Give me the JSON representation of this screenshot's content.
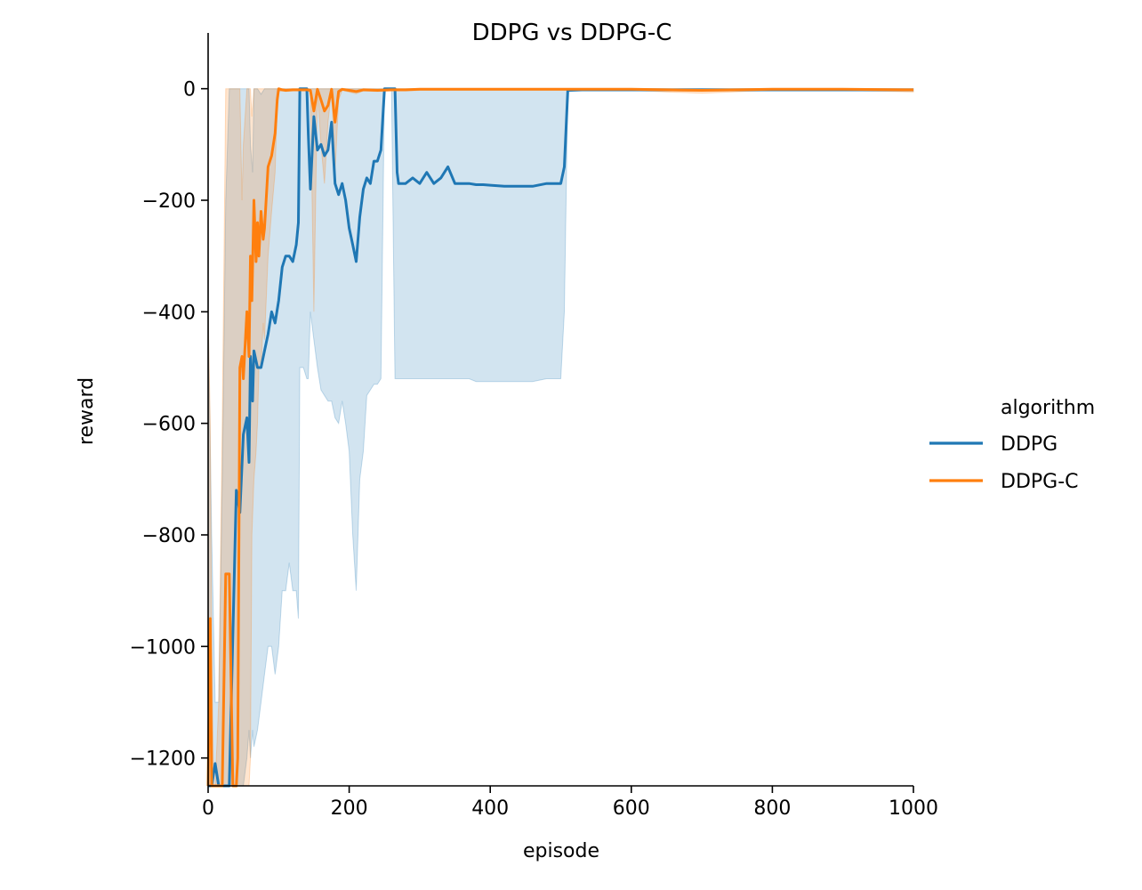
{
  "chart_data": {
    "type": "line",
    "title": "DDPG vs DDPG-C",
    "xlabel": "episode",
    "ylabel": "reward",
    "xlim": [
      0,
      1000
    ],
    "ylim": [
      -1250,
      100
    ],
    "xticks": [
      0,
      200,
      400,
      600,
      800,
      1000
    ],
    "xtick_labels": [
      "0",
      "200",
      "400",
      "600",
      "800",
      "1000"
    ],
    "yticks": [
      0,
      -200,
      -400,
      -600,
      -800,
      -1000,
      -1200
    ],
    "ytick_labels": [
      "0",
      "−200",
      "−400",
      "−600",
      "−800",
      "−1000",
      "−1200"
    ],
    "legend": {
      "title": "algorithm",
      "placement": "outside-right",
      "entries": [
        "DDPG",
        "DDPG-C"
      ]
    },
    "series": [
      {
        "name": "DDPG",
        "color": "#1f77b4",
        "x": [
          0,
          5,
          10,
          15,
          20,
          25,
          30,
          35,
          40,
          45,
          50,
          55,
          58,
          60,
          63,
          65,
          70,
          75,
          80,
          85,
          90,
          95,
          100,
          105,
          110,
          115,
          120,
          125,
          128,
          130,
          135,
          140,
          142,
          145,
          150,
          155,
          160,
          165,
          170,
          175,
          180,
          185,
          190,
          195,
          200,
          205,
          210,
          215,
          220,
          225,
          230,
          235,
          240,
          245,
          250,
          255,
          260,
          265,
          268,
          270,
          280,
          290,
          300,
          310,
          320,
          330,
          340,
          350,
          360,
          370,
          380,
          390,
          400,
          420,
          440,
          460,
          480,
          500,
          505,
          510,
          530,
          600,
          700,
          800,
          900,
          1000
        ],
        "y": [
          -1250,
          -1250,
          -1210,
          -1250,
          -1250,
          -1250,
          -1250,
          -980,
          -720,
          -760,
          -620,
          -590,
          -670,
          -480,
          -560,
          -470,
          -500,
          -500,
          -470,
          -440,
          -400,
          -420,
          -380,
          -320,
          -300,
          -300,
          -310,
          -280,
          -240,
          0,
          0,
          0,
          -80,
          -180,
          -50,
          -110,
          -100,
          -120,
          -110,
          -60,
          -170,
          -190,
          -170,
          -200,
          -250,
          -280,
          -310,
          -230,
          -180,
          -160,
          -170,
          -130,
          -130,
          -110,
          0,
          0,
          0,
          0,
          -150,
          -170,
          -170,
          -160,
          -170,
          -150,
          -170,
          -160,
          -140,
          -170,
          -170,
          -170,
          -172,
          -172,
          -173,
          -175,
          -175,
          -175,
          -170,
          -170,
          -140,
          -3,
          -2,
          -2,
          -2,
          -2,
          -2,
          -2
        ],
        "upper": [
          -400,
          -800,
          -1100,
          -1100,
          -700,
          -200,
          0,
          0,
          0,
          0,
          0,
          0,
          0,
          -100,
          -150,
          0,
          0,
          -10,
          0,
          0,
          0,
          0,
          0,
          0,
          0,
          0,
          0,
          0,
          0,
          0,
          0,
          0,
          0,
          0,
          0,
          0,
          0,
          0,
          0,
          0,
          0,
          0,
          0,
          0,
          0,
          0,
          0,
          0,
          0,
          0,
          0,
          0,
          0,
          0,
          0,
          0,
          0,
          0,
          0,
          0,
          0,
          0,
          0,
          0,
          0,
          0,
          0,
          0,
          0,
          0,
          0,
          0,
          0,
          0,
          0,
          0,
          0,
          0,
          0,
          0,
          0,
          0,
          0,
          0,
          0,
          0
        ],
        "lower": [
          -1250,
          -1250,
          -1250,
          -1250,
          -1250,
          -1250,
          -1250,
          -1250,
          -1250,
          -1250,
          -1250,
          -1200,
          -1150,
          -1200,
          -1150,
          -1180,
          -1150,
          -1100,
          -1050,
          -1000,
          -1000,
          -1050,
          -1000,
          -900,
          -900,
          -850,
          -900,
          -900,
          -950,
          -500,
          -500,
          -520,
          -520,
          -400,
          -450,
          -500,
          -540,
          -550,
          -560,
          -560,
          -590,
          -600,
          -560,
          -600,
          -650,
          -800,
          -900,
          -700,
          -650,
          -550,
          -540,
          -530,
          -530,
          -520,
          0,
          0,
          0,
          -520,
          -520,
          -520,
          -520,
          -520,
          -520,
          -520,
          -520,
          -520,
          -520,
          -520,
          -520,
          -520,
          -525,
          -525,
          -525,
          -525,
          -525,
          -525,
          -520,
          -520,
          -400,
          -5,
          -4,
          -4,
          -4,
          -4,
          -4,
          -4
        ]
      },
      {
        "name": "DDPG-C",
        "color": "#ff7f0e",
        "x": [
          0,
          3,
          5,
          8,
          10,
          15,
          20,
          25,
          30,
          35,
          40,
          42,
          45,
          48,
          50,
          55,
          58,
          60,
          62,
          65,
          68,
          70,
          72,
          75,
          78,
          80,
          85,
          90,
          95,
          98,
          100,
          105,
          110,
          120,
          130,
          140,
          145,
          150,
          155,
          160,
          165,
          170,
          175,
          180,
          185,
          190,
          200,
          210,
          220,
          240,
          260,
          280,
          300,
          350,
          400,
          450,
          500,
          550,
          600,
          650,
          700,
          800,
          900,
          1000
        ],
        "y": [
          -1250,
          -950,
          -1250,
          -1250,
          -1250,
          -1250,
          -1250,
          -870,
          -870,
          -1250,
          -1250,
          -1200,
          -500,
          -480,
          -520,
          -400,
          -480,
          -300,
          -380,
          -200,
          -310,
          -240,
          -300,
          -220,
          -270,
          -250,
          -140,
          -120,
          -80,
          -20,
          0,
          -2,
          -3,
          -2,
          -2,
          -2,
          -3,
          -40,
          -1,
          -20,
          -40,
          -30,
          -1,
          -60,
          -5,
          -1,
          -3,
          -5,
          -2,
          -3,
          -2,
          -2,
          -1,
          -1,
          -1,
          -1,
          -1,
          -1,
          -1,
          -2,
          -3,
          -1,
          -1,
          -2
        ],
        "upper": [
          -400,
          -600,
          -1000,
          -1250,
          -1250,
          -1100,
          -600,
          0,
          0,
          0,
          0,
          0,
          0,
          -200,
          -100,
          0,
          0,
          0,
          -50,
          0,
          0,
          0,
          0,
          0,
          0,
          0,
          0,
          0,
          0,
          0,
          0,
          0,
          0,
          0,
          0,
          0,
          0,
          0,
          0,
          0,
          0,
          0,
          0,
          0,
          0,
          0,
          0,
          0,
          0,
          0,
          0,
          0,
          0,
          0,
          0,
          0,
          0,
          0,
          0,
          0,
          0,
          0,
          0,
          0
        ],
        "lower": [
          -1250,
          -1250,
          -1250,
          -1250,
          -1250,
          -1250,
          -1250,
          -1250,
          -1250,
          -1250,
          -1250,
          -1250,
          -1250,
          -1250,
          -1250,
          -1250,
          -1250,
          -1200,
          -800,
          -700,
          -650,
          -600,
          -500,
          -500,
          -420,
          -450,
          -300,
          -220,
          -150,
          -30,
          -5,
          -4,
          -5,
          -4,
          -4,
          -4,
          -5,
          -400,
          -3,
          -100,
          -170,
          -60,
          -3,
          -150,
          -20,
          -3,
          -6,
          -9,
          -4,
          -5,
          -4,
          -4,
          -3,
          -3,
          -3,
          -3,
          -3,
          -3,
          -3,
          -6,
          -8,
          -3,
          -3,
          -6
        ]
      }
    ]
  }
}
